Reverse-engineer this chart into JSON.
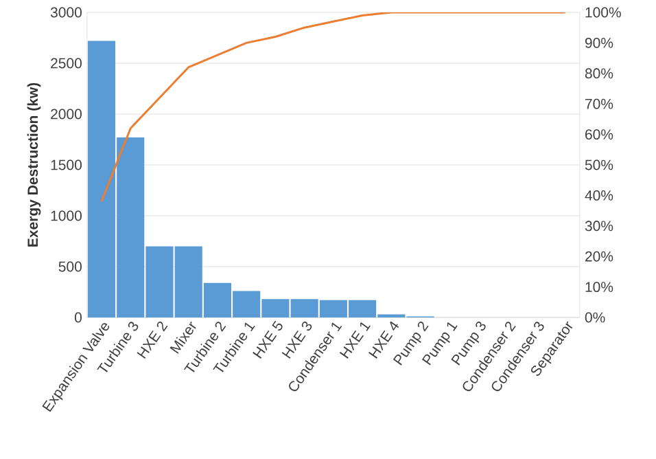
{
  "chart_data": {
    "type": "bar",
    "ylabel": "Exergy Destruction (kw)",
    "categories": [
      "Expansion Valve",
      "Turbine 3",
      "HXE 2",
      "Mixer",
      "Turbine 2",
      "Turbine 1",
      "HXE 5",
      "HXE 3",
      "Condenser 1",
      "HXE 1",
      "HXE 4",
      "Pump 2",
      "Pump 1",
      "Pump 3",
      "Condenser 2",
      "Condenser 3",
      "Separator"
    ],
    "series": [
      {
        "color": "#5b9bd5",
        "values": [
          2720,
          1770,
          700,
          700,
          340,
          260,
          180,
          180,
          170,
          170,
          30,
          10,
          0,
          0,
          0,
          0,
          0
        ]
      },
      {
        "type": "line",
        "axis": "y2",
        "color": "#ed7d31",
        "values": [
          38,
          62,
          72,
          82,
          86,
          90,
          92,
          95,
          97,
          99,
          100,
          100,
          100,
          100,
          100,
          100,
          100
        ]
      }
    ],
    "ylim": [
      0,
      3000
    ],
    "yticks": [
      0,
      500,
      1000,
      1500,
      2000,
      2500,
      3000
    ],
    "y2lim": [
      0,
      100
    ],
    "y2ticks": [
      {
        "value": 0,
        "label": "0%"
      },
      {
        "value": 10,
        "label": "10%"
      },
      {
        "value": 20,
        "label": "20%"
      },
      {
        "value": 30,
        "label": "30%"
      },
      {
        "value": 40,
        "label": "40%"
      },
      {
        "value": 50,
        "label": "50%"
      },
      {
        "value": 60,
        "label": "60%"
      },
      {
        "value": 70,
        "label": "70%"
      },
      {
        "value": 80,
        "label": "80%"
      },
      {
        "value": 90,
        "label": "90%"
      },
      {
        "value": 100,
        "label": "100%"
      }
    ],
    "grid": "y"
  }
}
